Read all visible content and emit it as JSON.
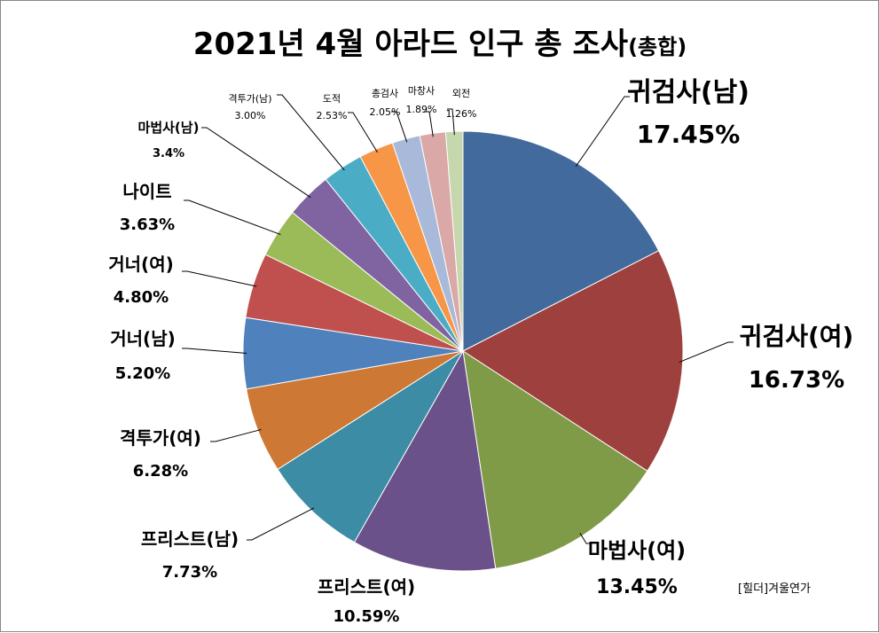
{
  "chart_data": {
    "type": "pie",
    "title": "2021년 4월 아라드 인구 총 조사",
    "title_suffix": "(총합)",
    "start": "top",
    "direction": "clockwise",
    "slices": [
      {
        "label": "귀검사(남)",
        "value": 17.45,
        "value_label": "17.45%",
        "color": "#426A9C"
      },
      {
        "label": "귀검사(여)",
        "value": 16.73,
        "value_label": "16.73%",
        "color": "#9E413E"
      },
      {
        "label": "마법사(여)",
        "value": 13.45,
        "value_label": "13.45%",
        "color": "#809B48"
      },
      {
        "label": "프리스트(여)",
        "value": 10.59,
        "value_label": "10.59%",
        "color": "#6A5189"
      },
      {
        "label": "프리스트(남)",
        "value": 7.73,
        "value_label": "7.73%",
        "color": "#3B8CA4"
      },
      {
        "label": "격투가(여)",
        "value": 6.28,
        "value_label": "6.28%",
        "color": "#CD7834"
      },
      {
        "label": "거너(남)",
        "value": 5.2,
        "value_label": "5.20%",
        "color": "#4F81BD"
      },
      {
        "label": "거너(여)",
        "value": 4.8,
        "value_label": "4.80%",
        "color": "#C0504D"
      },
      {
        "label": "나이트",
        "value": 3.63,
        "value_label": "3.63%",
        "color": "#9BBB59"
      },
      {
        "label": "마법사(남)",
        "value": 3.4,
        "value_label": "3.4%",
        "color": "#8064A2"
      },
      {
        "label": "격투가(남)",
        "value": 3.0,
        "value_label": "3.00%",
        "color": "#4BACC6"
      },
      {
        "label": "도적",
        "value": 2.53,
        "value_label": "2.53%",
        "color": "#F79646"
      },
      {
        "label": "총검사",
        "value": 2.05,
        "value_label": "2.05%",
        "color": "#A9B9D9"
      },
      {
        "label": "마창사",
        "value": 1.89,
        "value_label": "1.89%",
        "color": "#D9A8A7"
      },
      {
        "label": "외전",
        "value": 1.26,
        "value_label": "1.26%",
        "color": "#C6D6AD"
      }
    ]
  },
  "watermark": "[힐더]겨울연가"
}
